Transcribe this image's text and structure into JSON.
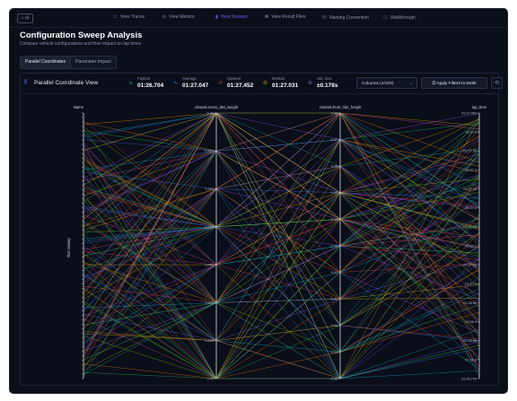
{
  "app": {
    "sidebar_toggle": "⌂ ⊟"
  },
  "nav": [
    {
      "icon": "🗠",
      "label": "View Traces",
      "active": false
    },
    {
      "icon": "⊙",
      "label": "View Metrics",
      "active": false
    },
    {
      "icon": "▮",
      "label": "View Sweeps",
      "active": true
    },
    {
      "icon": "⛃",
      "label": "View Result Files",
      "active": false
    },
    {
      "icon": "⓪",
      "label": "Naming Convention",
      "active": false
    },
    {
      "icon": "ⓘ",
      "label": "Walkthrough",
      "active": false
    }
  ],
  "page": {
    "title": "Configuration Sweep Analysis",
    "subtitle": "Compare vehicle configurations and their impact on lap times"
  },
  "tabs": [
    {
      "label": "Parallel Coordinates",
      "active": true
    },
    {
      "label": "Parameter Impact",
      "active": false
    }
  ],
  "panel": {
    "title": "Parallel Coordinate View",
    "stats": [
      {
        "label": "Fastest",
        "value": "01:26.704",
        "icon": "⇘",
        "color": "#22c55e"
      },
      {
        "label": "Average",
        "value": "01:27.047",
        "icon": "∿",
        "color": "#3b82f6"
      },
      {
        "label": "Slowest",
        "value": "01:27.452",
        "icon": "⇗",
        "color": "#ef4444"
      },
      {
        "label": "Median",
        "value": "01:27.031",
        "icon": "⊝",
        "color": "#f59e0b"
      },
      {
        "label": "Std. Dev.",
        "value": "±0.178s",
        "icon": "≋",
        "color": "#a855f7"
      }
    ],
    "columns_select": "Columns (4/328)",
    "apply_button": "Apply Filters to Desk",
    "reset_icon": "⟲"
  },
  "chart_data": {
    "type": "parallel-coordinates",
    "axes": [
      {
        "name": "Name",
        "ticks": []
      },
      {
        "name": "chassis.mass_dist_weight",
        "ticks": [
          "0.46",
          "0.457",
          "0.455",
          "0.452",
          "0.449",
          "0.446",
          "0.443",
          "0.44"
        ]
      },
      {
        "name": "chassis.front_ride_height",
        "ticks": [
          "0.48",
          "0.47",
          "0.46",
          "0.45",
          "0.44",
          "0.43",
          "0.42",
          "0.41",
          "0.40",
          "0.39",
          "0.38"
        ]
      },
      {
        "name": "lap_time",
        "ticks": [
          "01:27.452",
          "01:27.4",
          "01:27.35",
          "01:27.3",
          "01:27.25",
          "01:27.2",
          "01:27.15",
          "01:27.1",
          "01:27.05",
          "01:27.0",
          "01:26.95",
          "01:26.9",
          "01:26.85",
          "01:26.8",
          "01:26.704"
        ]
      }
    ],
    "name_axis_label": "Run Sweep",
    "line_count": 120
  }
}
